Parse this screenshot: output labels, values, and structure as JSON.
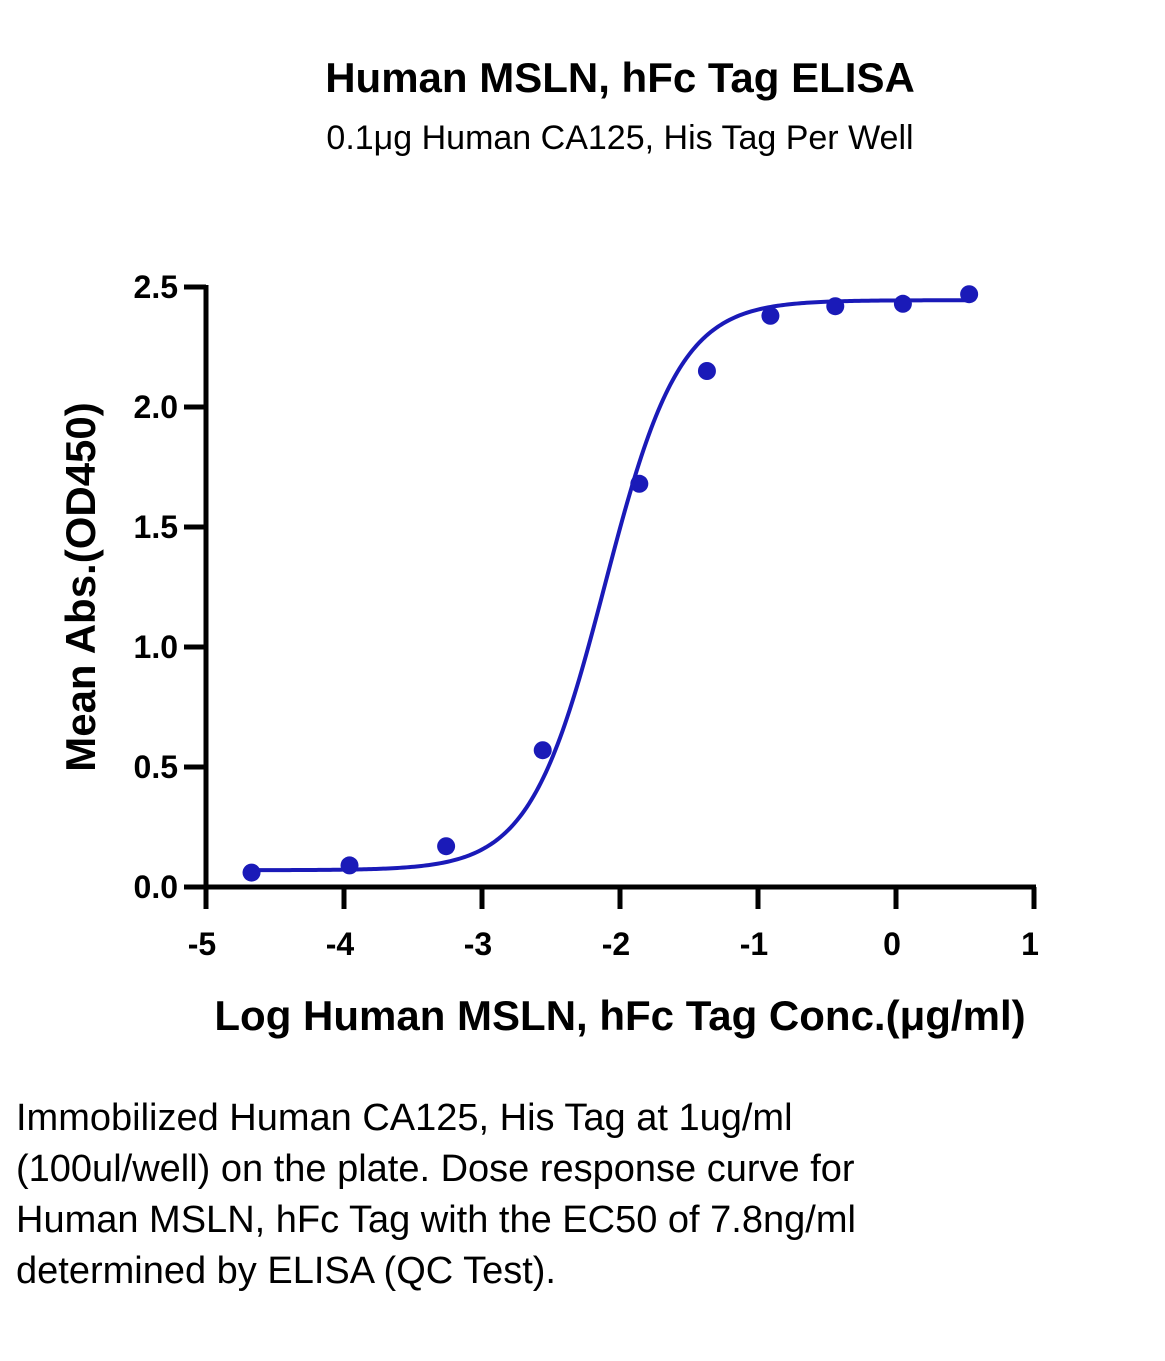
{
  "chart_data": {
    "type": "scatter",
    "title": "Human MSLN, hFc Tag ELISA",
    "subtitle": "0.1μg Human CA125, His Tag Per Well",
    "xlabel": "Log Human MSLN, hFc Tag Conc.(μg/ml)",
    "ylabel": "Mean Abs.(OD450)",
    "xlim": [
      -5,
      1
    ],
    "ylim": [
      0,
      2.5
    ],
    "x_ticks": [
      "-5",
      "-4",
      "-3",
      "-2",
      "-1",
      "0",
      "1"
    ],
    "y_ticks": [
      "0.0",
      "0.5",
      "1.0",
      "1.5",
      "2.0",
      "2.5"
    ],
    "x_tick_values": [
      -5,
      -4,
      -3,
      -2,
      -1,
      0,
      1
    ],
    "y_tick_values": [
      0,
      0.5,
      1.0,
      1.5,
      2.0,
      2.5
    ],
    "series": [
      {
        "x": [
          -4.67,
          -3.96,
          -3.26,
          -2.56,
          -1.86,
          -1.37,
          -0.91,
          -0.44,
          0.05,
          0.53
        ],
        "y": [
          0.06,
          0.09,
          0.17,
          0.57,
          1.68,
          2.15,
          2.38,
          2.42,
          2.43,
          2.47
        ],
        "color": "#1a1ab8",
        "fit": "4PL",
        "fit_params": {
          "bottom": 0.07,
          "top": 2.445,
          "log_ec50": -2.11,
          "hill": 1.6
        }
      }
    ],
    "grid": false,
    "legend": "none"
  },
  "caption": "Immobilized Human CA125, His Tag at 1ug/ml (100ul/well) on the plate. Dose response curve for Human MSLN, hFc Tag with the EC50 of 7.8ng/ml determined by ELISA (QC Test)."
}
